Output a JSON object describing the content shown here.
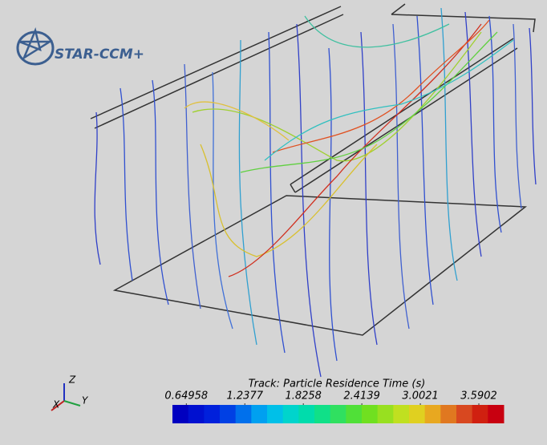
{
  "logo": {
    "text": "STAR-CCM+"
  },
  "triad": {
    "z": "Z",
    "x": "X",
    "y": "Y"
  },
  "colorbar": {
    "title": "Track: Particle Residence Time (s)",
    "range": [
      0.51,
      3.84
    ],
    "ticks": [
      0.64958,
      1.2377,
      1.8258,
      2.4139,
      3.0021,
      3.5902
    ],
    "colors": [
      "#0000c0",
      "#0010d0",
      "#0020dc",
      "#0040e4",
      "#0070ec",
      "#00a0f0",
      "#00c0e8",
      "#00d4cc",
      "#00dcac",
      "#10e088",
      "#30e060",
      "#50e038",
      "#70e020",
      "#98e020",
      "#c0e020",
      "#e0d020",
      "#e8a820",
      "#e07820",
      "#d84820",
      "#d02010",
      "#c80010"
    ]
  }
}
